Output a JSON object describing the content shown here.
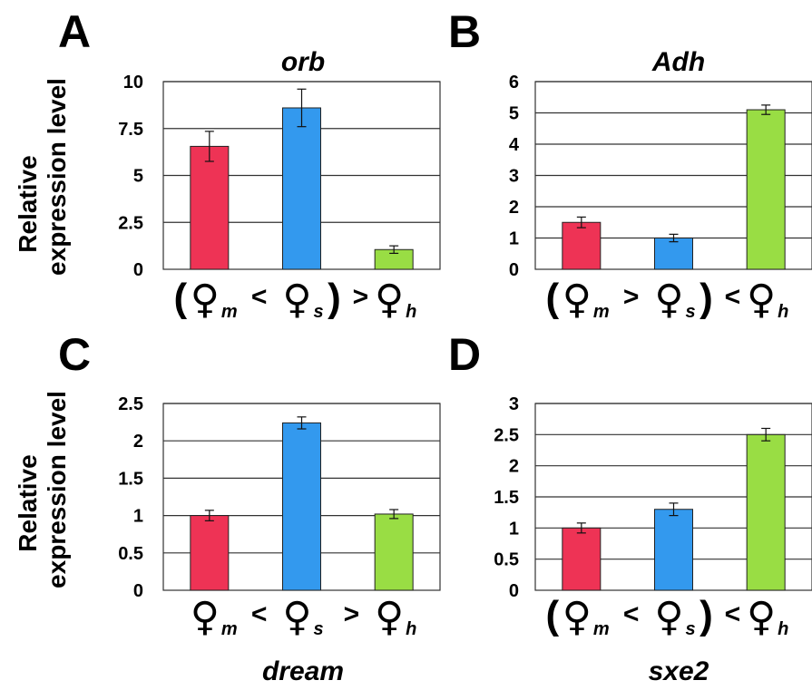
{
  "ylabel_line1": "Relative",
  "ylabel_line2": "expression level",
  "colors": {
    "mother": "#ee3355",
    "sister": "#3399ee",
    "hybrid": "#99dd44"
  },
  "chart_data": [
    {
      "panel": "A",
      "type": "bar",
      "title": "orb",
      "categories": [
        "m",
        "s",
        "h"
      ],
      "values": [
        6.55,
        8.6,
        1.05
      ],
      "errors": [
        0.8,
        1.0,
        0.2
      ],
      "ylim": [
        0,
        10
      ],
      "yticks": [
        "0",
        "2.5",
        "5",
        "7.5",
        "10"
      ],
      "relation": {
        "open": "(",
        "op1": "<",
        "close": ")",
        "op2": ">"
      }
    },
    {
      "panel": "B",
      "type": "bar",
      "title": "Adh",
      "categories": [
        "m",
        "s",
        "h"
      ],
      "values": [
        1.5,
        1.0,
        5.1
      ],
      "errors": [
        0.17,
        0.12,
        0.15
      ],
      "ylim": [
        0,
        6
      ],
      "yticks": [
        "0",
        "1",
        "2",
        "3",
        "4",
        "5",
        "6"
      ],
      "relation": {
        "open": "(",
        "op1": ">",
        "close": ")",
        "op2": "<"
      }
    },
    {
      "panel": "C",
      "type": "bar",
      "title": "dream",
      "categories": [
        "m",
        "s",
        "h"
      ],
      "values": [
        1.0,
        2.24,
        1.02
      ],
      "errors": [
        0.07,
        0.08,
        0.06
      ],
      "ylim": [
        0,
        2.5
      ],
      "yticks": [
        "0",
        "0.5",
        "1",
        "1.5",
        "2",
        "2.5"
      ],
      "relation": {
        "open": "",
        "op1": "<",
        "close": "",
        "op2": ">"
      }
    },
    {
      "panel": "D",
      "type": "bar",
      "title": "sxe2",
      "categories": [
        "m",
        "s",
        "h"
      ],
      "values": [
        1.0,
        1.3,
        2.5
      ],
      "errors": [
        0.08,
        0.1,
        0.1
      ],
      "ylim": [
        0,
        3
      ],
      "yticks": [
        "0",
        "0.5",
        "1",
        "1.5",
        "2",
        "2.5",
        "3"
      ],
      "relation": {
        "open": "(",
        "op1": "<",
        "close": ")",
        "op2": "<"
      }
    }
  ]
}
